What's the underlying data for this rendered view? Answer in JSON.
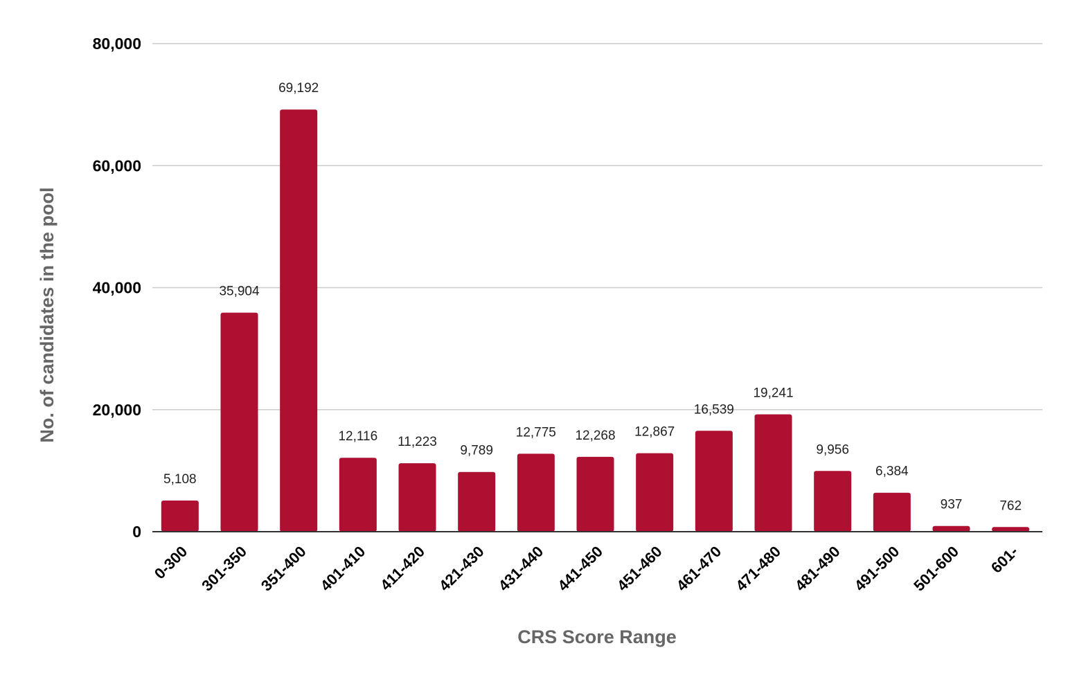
{
  "chart_data": {
    "type": "bar",
    "title": "",
    "xlabel": "CRS Score Range",
    "ylabel": "No. of candidates in the pool",
    "categories": [
      "0-300",
      "301-350",
      "351-400",
      "401-410",
      "411-420",
      "421-430",
      "431-440",
      "441-450",
      "451-460",
      "461-470",
      "471-480",
      "481-490",
      "491-500",
      "501-600",
      "601-"
    ],
    "values": [
      5108,
      35904,
      69192,
      12116,
      11223,
      9789,
      12775,
      12268,
      12867,
      16539,
      19241,
      9956,
      6384,
      937,
      762
    ],
    "data_labels": [
      "5,108",
      "35,904",
      "69,192",
      "12,116",
      "11,223",
      "9,789",
      "12,775",
      "12,268",
      "12,867",
      "16,539",
      "19,241",
      "9,956",
      "6,384",
      "937",
      "762"
    ],
    "ylim": [
      0,
      80000
    ],
    "yticks": [
      0,
      20000,
      40000,
      60000,
      80000
    ],
    "ytick_labels": [
      "0",
      "20,000",
      "40,000",
      "60,000",
      "80,000"
    ],
    "grid": true,
    "legend": "none",
    "bar_color": "#ad1030"
  }
}
